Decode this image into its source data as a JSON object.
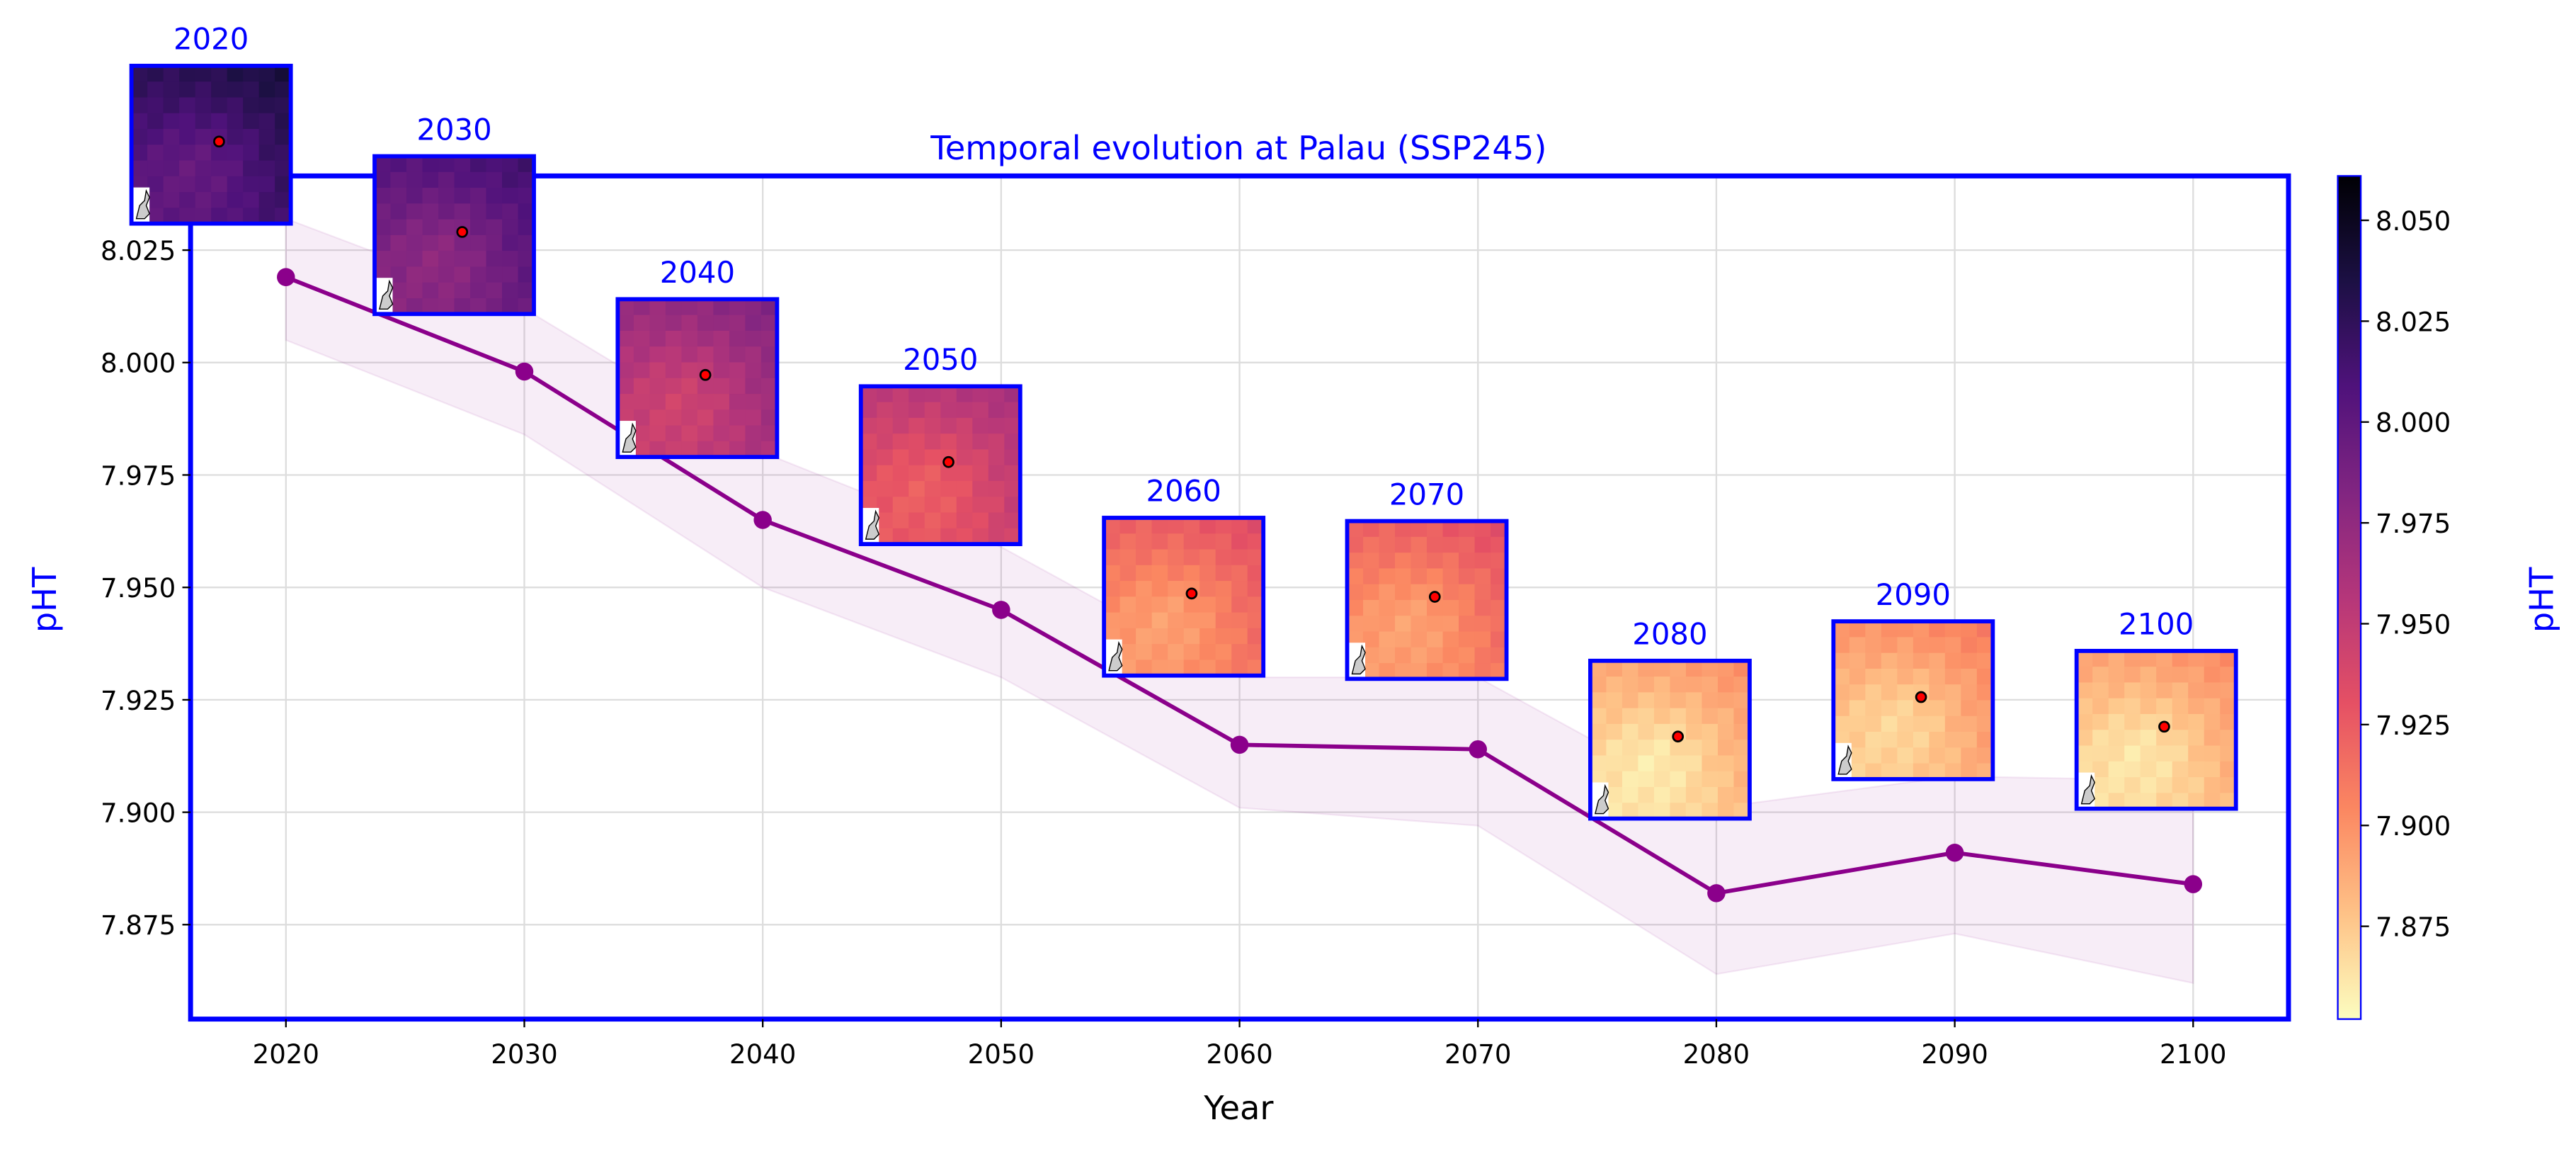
{
  "chart_data": {
    "type": "line",
    "title": "Temporal evolution at Palau (SSP245)",
    "xlabel": "Year",
    "ylabel": "pHT",
    "x": [
      2020,
      2030,
      2040,
      2050,
      2060,
      2070,
      2080,
      2090,
      2100
    ],
    "series": [
      {
        "values": [
          8.019,
          7.998,
          7.965,
          7.945,
          7.915,
          7.914,
          7.882,
          7.891,
          7.884
        ],
        "band_upper": [
          8.032,
          8.012,
          7.98,
          7.959,
          7.93,
          7.93,
          7.901,
          7.908,
          7.907
        ],
        "band_lower": [
          8.005,
          7.984,
          7.95,
          7.93,
          7.901,
          7.897,
          7.864,
          7.873,
          7.862
        ],
        "color": "#8b008b"
      }
    ],
    "xlim": [
      2016,
      2104
    ],
    "ylim": [
      7.854,
      8.0415
    ],
    "xticks": [
      "2020",
      "2030",
      "2040",
      "2050",
      "2060",
      "2070",
      "2080",
      "2090",
      "2100"
    ],
    "yticks": [
      7.875,
      7.9,
      7.925,
      7.95,
      7.975,
      8.0,
      8.025
    ],
    "ytick_labels": [
      "7.875",
      "7.900",
      "7.925",
      "7.950",
      "7.975",
      "8.000",
      "8.025"
    ],
    "grid": true,
    "frame_color": "#0000ff",
    "inset_labels": [
      "2020",
      "2030",
      "2040",
      "2050",
      "2060",
      "2070",
      "2080",
      "2090",
      "2100"
    ],
    "colorbar": {
      "label": "pHT",
      "colormap": "magma_r",
      "range": [
        7.852,
        8.061
      ],
      "ticks": [
        7.875,
        7.9,
        7.925,
        7.95,
        7.975,
        8.0,
        8.025,
        8.05
      ],
      "tick_labels": [
        "7.875",
        "7.900",
        "7.925",
        "7.950",
        "7.975",
        "8.000",
        "8.025",
        "8.050"
      ]
    }
  }
}
